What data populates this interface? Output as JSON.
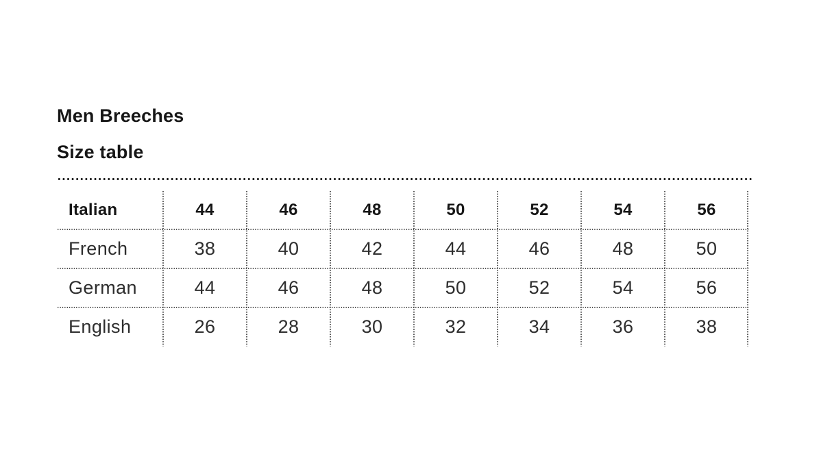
{
  "page": {
    "heading": "Men Breeches",
    "subheading": "Size table"
  },
  "chart_data": {
    "type": "table",
    "title": "Men Breeches — Size table",
    "header_row": {
      "label": "Italian",
      "values": [
        "44",
        "46",
        "48",
        "50",
        "52",
        "54",
        "56"
      ]
    },
    "rows": [
      {
        "label": "French",
        "values": [
          "38",
          "40",
          "42",
          "44",
          "46",
          "48",
          "50"
        ]
      },
      {
        "label": "German",
        "values": [
          "44",
          "46",
          "48",
          "50",
          "52",
          "54",
          "56"
        ]
      },
      {
        "label": "English",
        "values": [
          "26",
          "28",
          "30",
          "32",
          "34",
          "36",
          "38"
        ]
      }
    ],
    "layout": {
      "border_style": "dotted",
      "header_bold": true,
      "grid": "columns separated by dotted lines, rows separated by dotted lines, thick dotted rule on top, no left or bottom border"
    }
  },
  "colors": {
    "background": "#ffffff",
    "heading_text": "#161616",
    "body_text": "#2e2e2e",
    "dots": "#2b2b2b"
  }
}
